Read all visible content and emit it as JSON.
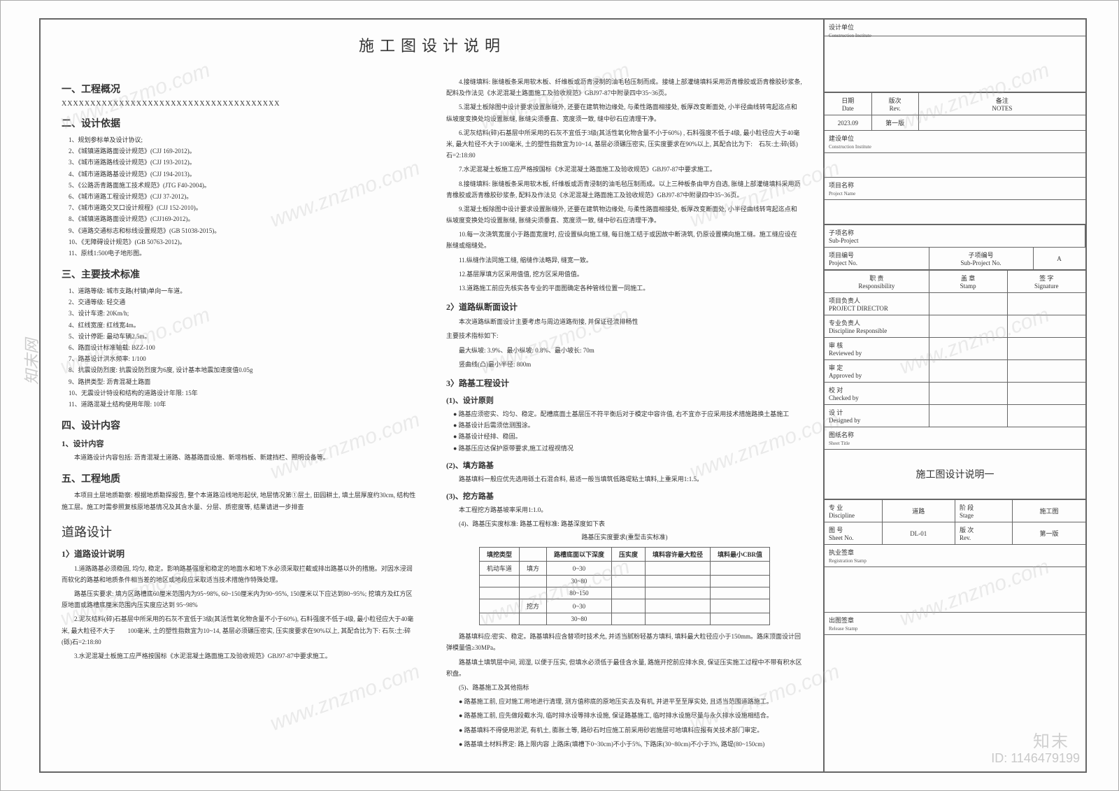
{
  "title": "施工图设计说明",
  "left": {
    "s1": {
      "h": "一、工程概况",
      "xxx": "XXXXXXXXXXXXXXXXXXXXXXXXXXXXXXXXXXXXXX"
    },
    "s2": {
      "h": "二、设计依据",
      "items": [
        "1、规划参标单及设计协议;",
        "2、《城镇道路路面设计规范》(CJJ 169-2012)。",
        "3、《城市道路路线设计规范》(CJJ 193-2012)。",
        "4、《城市道路路基设计规范》(CJJ 194-2013)。",
        "5、《公路沥青路面施工技术规范》(JTG F40-2004)。",
        "6、《城市道路工程设计规范》(CJJ 37-2012)。",
        "7、《城市道路交叉口设计规程》(CJJ 152-2010)。",
        "8、《城镇道路路面设计规范》(CJJ169-2012)。",
        "9、《道路交通标志和标线设置规范》(GB 51038-2015)。",
        "10、《无障碍设计规范》(GB 50763-2012)。",
        "11、原线1:500电子地形图。"
      ]
    },
    "s3": {
      "h": "三、主要技术标准",
      "items": [
        "1、道路等级: 城市支路(村镇)单向一车道。",
        "2、交通等级: 轻交通",
        "3、设计车速: 20Km/h;",
        "4、红线宽度: 红线宽4m。",
        "5、设计停距: 最动车辆2.5m。",
        "6、路面设计标准轴载: BZZ-100",
        "7、路基设计洪水频率: 1/100",
        "8、抗震设防烈度: 抗震设防烈度为6度, 设计基本地震加速度值0.05g",
        "9、路拱类型: 沥青混凝土路面",
        "10、无震设计特设和结构的道路设计年限: 15年",
        "11、道路混凝土结构使用年限: 10年"
      ]
    },
    "s4": {
      "h": "四、设计内容",
      "sub": "1、设计内容",
      "text": "本道路设计内容包括: 沥青混凝土道路、路基路面设施、新增档板、新建挡栏、照明设备等。"
    },
    "s5": {
      "h": "五、工程地质",
      "text": "本项目土层地质勘察: 根据地质勘探报告, 整个本道路沿线地形起伏, 地层情况第①层土, 田园耕土, 填土层厚度约30cm, 结构性施工层。施工时需参照复核原地基情况及其含水量、分层、质密度等, 结果请进一步排查"
    },
    "road_head": "道路设计",
    "road1": {
      "h": "1〉道路设计说明",
      "p1": "1.道路路基必须稳固, 均匀, 稳定。影响路基强度和稳定的地面水和地下水必须采取拦截或排出路基以外的措施。对因水浸润而软化的路基和地质条件相当差的地区或地段应采取适当技术措施作特殊处理。",
      "p2": "路基压实要求: 填方区路槽底60厘米范围内为95~98%, 60~150厘米内为90~95%, 150厘米以下应达到80~95%; 挖填方及红方区原地面或路槽底厘米范围内压实度应达到 95~98%",
      "p3": "2.泥灰结料(碎)石基层中所采用的石灰不宜低于3级(其活性氧化物含量不小于60%), 石料强度不低于4级, 最小粒径应大于40毫米, 最大粒径不大于　　100毫米, 土的塑性指数宜为10~14, 基层必须碾压密实, 压实度要求在90%以上, 其配合比为下: 石灰:土:碎(砾)石=2:18:80",
      "p4": "3.水泥混凝土板施工应严格按国标《水泥混凝土路面施工及验收规范》GBJ97-87中要求施工。"
    }
  },
  "right": {
    "items4to13": [
      "4.接缝填料: 胀缝板条采用软木板、纤维板或沥青浸制的油毛毡压制而成。接缝上部灌缝填料采用沥青橡胶或沥青橡胶砂浆条, 配料及作法见《水泥混凝土路面施工及验收规范》GBJ97-87中附录四中35~36页。",
      "5.混凝土板除图中设计要求设置胀缝外, 还要在建筑物边缘处, 与柔性路面相接处, 板厚改变断面处, 小半径曲线转弯起迄点和纵坡度变换处均设置胀缝, 胀缝尖须垂直、宽度须一致, 缝中砂石应清理干净。",
      "6.泥灰结料(碎)石基层中所采用的石灰不宜低于3级(其活性氧化物含量不小于60%) , 石料强度不低于4级, 最小粒径应大于40毫米, 最大粒径不大于100毫米, 土的塑性指数宜为10~14, 基层必须碾压密实, 压实度要求在90%以上, 其配合比为下:　石灰:土:碎(砾)石=2:18:80",
      "7.水泥混凝土板施工应严格按国标《水泥混凝土路面施工及验收规范》GBJ97-87中要求施工。",
      "8.接缝填料: 胀缝板条采用软木板, 纤维板或沥青浸制的油毛毡压制而成。以上三种板条由甲方自选, 胀缝上部灌缝填料采用沥青橡胶或沥青橡胶砂浆条, 配料及作法见《水泥混凝土路面施工及验收规范》GBJ97-87中附录四中35~36页。",
      "9.混凝土板除图中设计要求设置胀缝外, 还要在建筑物边缘处, 与柔性路面相接处, 板厚改变断面处, 小半径曲线转弯起迄点和纵坡度变换处均设置胀缝, 胀缝尖须垂直、宽度须一致, 缝中砂石应清理干净。",
      "10.每一次浇筑宽度小于路面宽度时, 应设置纵向施工缝, 每日施工结于或因故中断浇筑, 仍原设置横向施工缝。施工缝应设在胀缝或缩缝处。",
      "11.纵缝作法同施工缝, 缩缝作法略异, 缝宽一致。",
      "12.基层厚填方区采用值值, 挖方区采用值值。",
      "13.道路施工前应先核实各专业的平面图确定各种管线位置一同施工。"
    ],
    "s2": {
      "h": "2〉道路纵断面设计",
      "p": "本次道路纵断面设计主要考虑与周边道路衔接, 并保证径流排畅性",
      "sub": "主要技术指标如下:",
      "l1": "最大纵坡: 3.9%、最小纵坡: 0.8%、最小坡长: 70m",
      "l2": "竖曲线(凸)最小半径: 800m"
    },
    "s3": {
      "h": "3〉路基工程设计",
      "a": {
        "h": "(1)、设计原则",
        "items": [
          "● 路基应须密实、均匀、稳定。配槽底面土基层压不符平衡后对于模定中容许值, 右不宜亦于应采用技术措施路换土基施工",
          "● 路基设计后需须信测围涂。",
          "● 路基设计经排、稳固。",
          "● 路基压应达保护原带要求,施工过程视情况"
        ]
      },
      "b": {
        "h": "(2)、填方路基",
        "p": "路基填料一般应优先选用砾土石混合料, 易适一般当填筑低路堤粘土填料,上重采用1:1.5。"
      },
      "c": {
        "h": "(3)、挖方路基",
        "l1": "本工程挖方路基坡率采用1:1.0。",
        "l2": "(4)、路基压实度标准: 路基工程标准: 路基深度如下表"
      },
      "tbl_cap": "路基压实度要求(重型击实标准)",
      "tbl": {
        "head": [
          "填挖类型",
          "",
          "路槽底面以下深度",
          "压实度",
          "填料容许最大粒径",
          "填料最小CBR值"
        ],
        "rows": [
          [
            "机动车道",
            "填方",
            "0~30",
            "",
            "",
            ""
          ],
          [
            "",
            "",
            "30~80",
            "",
            "",
            ""
          ],
          [
            "",
            "",
            "80~150",
            "",
            "",
            ""
          ],
          [
            "",
            "挖方",
            "0~30",
            "",
            "",
            ""
          ],
          [
            "",
            "",
            "30~80",
            "",
            "",
            ""
          ]
        ]
      },
      "after": [
        "路基填料应:密实、稳定。路基填料应含替项时技术允, 并适当腻粉轻基方填料, 填料最大粒径应小于150mm。路床顶面设计回弹模量值≥30MPa。",
        "路基填土填筑层中间, 润湿, 以便于压实, 但填水必须低于最佳含水量, 路施开挖前应排水良, 保证压实施工过程中不带有积水区积盘。",
        "(5)、路基施工及其他指标",
        "● 路基施工前, 应对施工用地进行清理, 测方值称底的原地压实去及有机, 并进平至至厚实处, 且适当范围道路施工。",
        "● 路基施工前, 应先做段截水沟, 临时排水设等排水设施, 保证路基施工, 临时排水设施尽量与永久排水设施相结合。",
        "● 路基填料不得使用淤泥, 有机土, 膨胀土等, 路砂石时应施工前采用砂岩施层可地填料应报有关技术部门审定。",
        "● 路基填土材料界定: 路上限内容 上路床(填槽下0~30cm)不小于5%, 下路床(30~80cm)不小于3%, 路堤(80~150cm)"
      ]
    }
  },
  "titleblock": {
    "design_unit": {
      "cn": "设计单位",
      "en": "Construction Institute"
    },
    "date_lab": {
      "cn": "日期",
      "en": "Date"
    },
    "date_val": "2023.09",
    "rev_lab": {
      "cn": "版次",
      "en": "Rev."
    },
    "rev_val": "第一版",
    "note_lab": {
      "cn": "备注",
      "en": "NOTES"
    },
    "client": {
      "cn": "建设单位",
      "en": "Construction Institute"
    },
    "proj": {
      "cn": "项目名称",
      "en": "Project Name"
    },
    "subproj": {
      "cn": "子项名称",
      "en": "Sub-Project"
    },
    "projno": {
      "cn": "项目编号",
      "en": "Project No."
    },
    "subno": {
      "cn": "子项编号",
      "en": "Sub-Project No."
    },
    "subno_val": "A",
    "resp": {
      "cn": "职 责",
      "en": "Responsibility"
    },
    "stamp": {
      "cn": "盖 章",
      "en": "Stamp"
    },
    "sign": {
      "cn": "签 字",
      "en": "Signature"
    },
    "pd": {
      "cn": "项目负责人",
      "en": "PROJECT DIRECTOR"
    },
    "dr": {
      "cn": "专业负责人",
      "en": "Discipline Responsible"
    },
    "rv": {
      "cn": "审 核",
      "en": "Reviewed by"
    },
    "ap": {
      "cn": "审 定",
      "en": "Approved by"
    },
    "ck": {
      "cn": "校 对",
      "en": "Checked by"
    },
    "ds": {
      "cn": "设 计",
      "en": "Designed by"
    },
    "sheet_title_lab": {
      "cn": "图纸名称",
      "en": "Sheet Title"
    },
    "sheet_title": "施工图设计说明一",
    "disc": {
      "cn": "专 业",
      "en": "Discipline"
    },
    "disc_val": "道路",
    "stage": {
      "cn": "阶 段",
      "en": "Stage"
    },
    "stage_val": "施工图",
    "sheetno": {
      "cn": "图 号",
      "en": "Sheet No."
    },
    "sheetno_val": "DL-01",
    "rev2": {
      "cn": "版 次",
      "en": "Rev."
    },
    "rev2_val": "第一版",
    "reg": {
      "cn": "执业签章",
      "en": "Registration Stamp"
    },
    "rel": {
      "cn": "出图签章",
      "en": "Release Stamp"
    }
  },
  "footer": {
    "logo": "知末",
    "id": "ID: 1146479199"
  },
  "wm": "www.znzmo.com"
}
